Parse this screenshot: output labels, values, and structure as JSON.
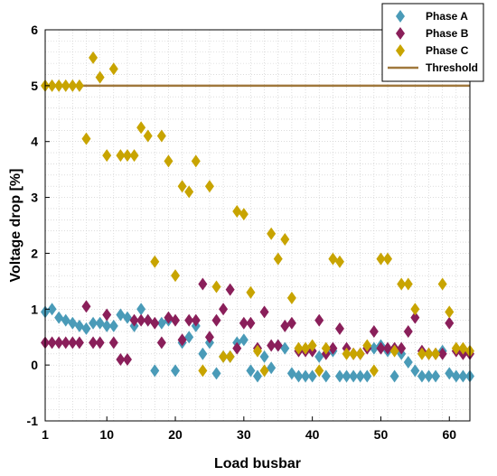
{
  "chart_data": {
    "type": "scatter",
    "xlabel": "Load busbar",
    "ylabel": "Voltage drop [%]",
    "xlim": [
      1,
      63
    ],
    "ylim": [
      -1,
      6
    ],
    "xticks": [
      1,
      10,
      20,
      30,
      40,
      50,
      60
    ],
    "yticks": [
      -1,
      0,
      1,
      2,
      3,
      4,
      5,
      6
    ],
    "grid": "on",
    "legend_position": "top-right",
    "threshold": {
      "name": "Threshold",
      "value": 5.0,
      "color": "#a0783c"
    },
    "series": [
      {
        "name": "Phase A",
        "color": "#4a9bb8",
        "x": [
          1,
          2,
          3,
          4,
          5,
          6,
          7,
          8,
          9,
          10,
          11,
          12,
          13,
          14,
          15,
          16,
          17,
          18,
          19,
          20,
          21,
          22,
          23,
          24,
          25,
          26,
          27,
          28,
          29,
          30,
          31,
          32,
          33,
          34,
          35,
          36,
          37,
          38,
          39,
          40,
          41,
          42,
          43,
          44,
          45,
          46,
          47,
          48,
          49,
          50,
          51,
          52,
          53,
          54,
          55,
          56,
          57,
          58,
          59,
          60,
          61,
          62,
          63
        ],
        "y": [
          0.95,
          1.0,
          0.85,
          0.8,
          0.75,
          0.7,
          0.65,
          0.75,
          0.75,
          0.7,
          0.7,
          0.9,
          0.85,
          0.7,
          1.0,
          0.8,
          -0.1,
          0.75,
          0.8,
          -0.1,
          0.4,
          0.5,
          0.7,
          0.2,
          0.4,
          -0.15,
          0.15,
          0.15,
          0.4,
          0.45,
          -0.1,
          -0.2,
          0.15,
          -0.05,
          0.35,
          0.3,
          -0.15,
          -0.2,
          -0.2,
          -0.2,
          0.15,
          -0.2,
          0.25,
          -0.2,
          -0.2,
          -0.2,
          -0.2,
          -0.2,
          0.3,
          0.35,
          0.25,
          -0.2,
          0.2,
          0.05,
          -0.1,
          -0.2,
          -0.2,
          -0.2,
          0.25,
          -0.15,
          -0.2,
          -0.2,
          -0.2
        ]
      },
      {
        "name": "Phase B",
        "color": "#8a1f5a",
        "x": [
          1,
          2,
          3,
          4,
          5,
          6,
          7,
          8,
          9,
          10,
          11,
          12,
          13,
          14,
          15,
          16,
          17,
          18,
          19,
          20,
          21,
          22,
          23,
          24,
          25,
          26,
          27,
          28,
          29,
          30,
          31,
          32,
          33,
          34,
          35,
          36,
          37,
          38,
          39,
          40,
          41,
          42,
          43,
          44,
          45,
          46,
          47,
          48,
          49,
          50,
          51,
          52,
          53,
          54,
          55,
          56,
          57,
          58,
          59,
          60,
          61,
          62,
          63
        ],
        "y": [
          0.4,
          0.4,
          0.4,
          0.4,
          0.4,
          0.4,
          1.05,
          0.4,
          0.4,
          0.9,
          0.4,
          0.1,
          0.1,
          0.8,
          0.8,
          0.8,
          0.75,
          0.4,
          0.85,
          0.8,
          0.45,
          0.8,
          0.8,
          1.45,
          0.5,
          0.8,
          1.0,
          1.35,
          0.3,
          0.75,
          0.75,
          0.3,
          0.95,
          0.35,
          0.35,
          0.7,
          0.75,
          0.25,
          0.25,
          0.25,
          0.8,
          0.2,
          0.3,
          0.65,
          0.3,
          0.2,
          0.2,
          0.3,
          0.6,
          0.3,
          0.3,
          0.3,
          0.3,
          0.6,
          0.85,
          0.25,
          0.2,
          0.2,
          0.2,
          0.75,
          0.25,
          0.2,
          0.2
        ]
      },
      {
        "name": "Phase C",
        "color": "#c8a400",
        "x": [
          1,
          2,
          3,
          4,
          5,
          6,
          7,
          8,
          9,
          10,
          11,
          12,
          13,
          14,
          15,
          16,
          17,
          18,
          19,
          20,
          21,
          22,
          23,
          24,
          25,
          26,
          27,
          28,
          29,
          30,
          31,
          32,
          33,
          34,
          35,
          36,
          37,
          38,
          39,
          40,
          41,
          42,
          43,
          44,
          45,
          46,
          47,
          48,
          49,
          50,
          51,
          52,
          53,
          54,
          55,
          56,
          57,
          58,
          59,
          60,
          61,
          62,
          63
        ],
        "y": [
          5.0,
          5.0,
          5.0,
          5.0,
          5.0,
          5.0,
          4.05,
          5.5,
          5.15,
          3.75,
          5.3,
          3.75,
          3.75,
          3.75,
          4.25,
          4.1,
          1.85,
          4.1,
          3.65,
          1.6,
          3.2,
          3.1,
          3.65,
          -0.1,
          3.2,
          1.4,
          0.15,
          0.15,
          2.75,
          2.7,
          1.3,
          0.25,
          -0.1,
          2.35,
          1.9,
          2.25,
          1.2,
          0.3,
          0.3,
          0.35,
          -0.1,
          0.3,
          1.9,
          1.85,
          0.2,
          0.2,
          0.2,
          0.35,
          -0.1,
          1.9,
          1.9,
          0.25,
          1.45,
          1.45,
          1.0,
          0.2,
          0.2,
          0.2,
          1.45,
          0.95,
          0.3,
          0.3,
          0.25
        ]
      }
    ]
  }
}
